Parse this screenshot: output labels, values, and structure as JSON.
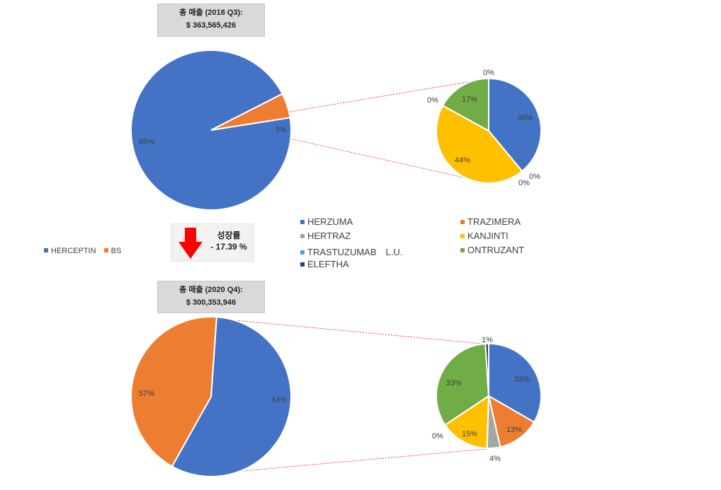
{
  "top_total": {
    "title": "총 매출 (2018 Q3):",
    "value": "$ 363,565,426"
  },
  "bottom_total": {
    "title": "총 매출 (2020 Q4):",
    "value": "$ 300,353,946"
  },
  "growth": {
    "label": "성장률",
    "value": "- 17.39 %"
  },
  "colors": {
    "HERCEPTIN": "#4472c4",
    "BS": "#ed7d31",
    "HERZUMA": "#4472c4",
    "TRAZIMERA": "#ed7d31",
    "HERTRAZ": "#a5a5a5",
    "KANJINTI": "#ffc000",
    "TRASTUZUMAB L.U.": "#5b9bd5",
    "ONTRUZANT": "#70ad47",
    "ELEFTHA": "#264478",
    "arrow": "#ff0000"
  },
  "main_legend": [
    "HERCEPTIN",
    "BS"
  ],
  "bs_legend": [
    "HERZUMA",
    "TRAZIMERA",
    "HERTRAZ",
    "KANJINTI",
    "TRASTUZUMAB　L.U.",
    "ONTRUZANT",
    "ELEFTHA"
  ],
  "chart_data": [
    {
      "type": "pie",
      "title": "",
      "categories": [
        "HERCEPTIN",
        "BS"
      ],
      "values": [
        95,
        5
      ],
      "labels": [
        "95%",
        "5%"
      ]
    },
    {
      "type": "pie",
      "title": "",
      "categories": [
        "HERZUMA",
        "TRAZIMERA",
        "HERTRAZ",
        "KANJINTI",
        "TRASTUZUMAB L.U.",
        "ONTRUZANT",
        "ELEFTHA"
      ],
      "values": [
        39,
        0,
        0,
        44,
        0,
        17,
        0
      ],
      "labels": [
        "39%",
        "0%",
        "0%",
        "44%",
        "0%",
        "17%",
        "0%"
      ]
    },
    {
      "type": "pie",
      "title": "",
      "categories": [
        "HERCEPTIN",
        "BS"
      ],
      "values": [
        57,
        43
      ],
      "labels": [
        "57%",
        "43%"
      ]
    },
    {
      "type": "pie",
      "title": "",
      "categories": [
        "HERZUMA",
        "TRAZIMERA",
        "HERTRAZ",
        "KANJINTI",
        "TRASTUZUMAB L.U.",
        "ONTRUZANT",
        "ELEFTHA"
      ],
      "values": [
        33,
        13,
        4,
        15,
        0,
        33,
        1
      ],
      "labels": [
        "33%",
        "13%",
        "4%",
        "15%",
        "0%",
        "33%",
        "1%"
      ]
    }
  ]
}
